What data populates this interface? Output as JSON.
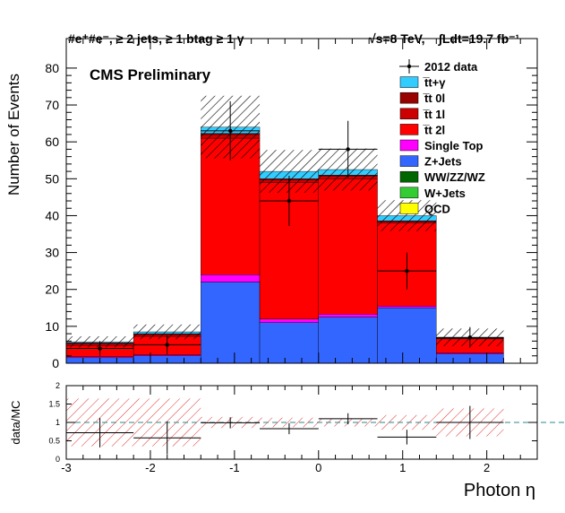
{
  "header": {
    "selection": "#e⁺#e⁻, ≥ 2 jets, ≥ 1 btag ≥ 1 γ",
    "energy": "√s=8 TeV,",
    "lumi": "∫Ldt=19.7 fb⁻¹"
  },
  "label": "CMS Preliminary",
  "chart_data": [
    {
      "type": "bar",
      "stacked": true,
      "xlabel": "Photon η",
      "ylabel": "Number of Events",
      "xlim": [
        -3,
        2.6
      ],
      "ylim": [
        0,
        88
      ],
      "x_ticks": [
        -3,
        -2,
        -1,
        0,
        1,
        2
      ],
      "y_ticks": [
        0,
        10,
        20,
        30,
        40,
        50,
        60,
        70,
        80
      ],
      "bin_edges": [
        -3,
        -2.2,
        -1.4,
        -0.7,
        0,
        0.7,
        1.4,
        2.2
      ],
      "legend_position": "top-right",
      "series": [
        {
          "name": "QCD",
          "color": "#ffff00",
          "values": [
            0,
            0,
            0,
            0,
            0,
            0,
            0
          ]
        },
        {
          "name": "W+Jets",
          "color": "#33cc33",
          "values": [
            0,
            0,
            0,
            0,
            0,
            0,
            0
          ]
        },
        {
          "name": "WW/ZZ/WZ",
          "color": "#006600",
          "values": [
            0,
            0,
            0,
            0,
            0,
            0,
            0
          ]
        },
        {
          "name": "Z+Jets",
          "color": "#3366ff",
          "values": [
            1.5,
            2.0,
            22,
            11,
            12.5,
            15,
            2.5
          ]
        },
        {
          "name": "Single Top",
          "color": "#ff00ff",
          "values": [
            0.3,
            0.3,
            2.0,
            1.0,
            0.8,
            0.5,
            0.3
          ]
        },
        {
          "name": "t̅t 2l",
          "color": "#ff0000",
          "values": [
            3.0,
            5.0,
            37,
            37,
            36.7,
            22.5,
            3.8
          ]
        },
        {
          "name": "t̅t 1l",
          "color": "#cc0000",
          "values": [
            0.5,
            0.5,
            1.0,
            0.8,
            0.8,
            0.5,
            0.2
          ]
        },
        {
          "name": "t̅t 0l",
          "color": "#990000",
          "values": [
            0.2,
            0.2,
            0.3,
            0.2,
            0.2,
            0.1,
            0.1
          ]
        },
        {
          "name": "t̅t+γ",
          "color": "#33ccff",
          "values": [
            0.3,
            0.5,
            1.7,
            2.0,
            1.5,
            1.4,
            0.1
          ]
        }
      ],
      "mc_uncertainty": [
        1.5,
        2.0,
        8.5,
        5.8,
        5.7,
        4.2,
        2.4
      ],
      "data_series": {
        "name": "2012 data",
        "x": [
          -2.6,
          -1.8,
          -1.05,
          -0.35,
          0.35,
          1.05,
          1.8
        ],
        "y": [
          4,
          5,
          63,
          44,
          58,
          25,
          7
        ],
        "x_err": [
          0.4,
          0.4,
          0.35,
          0.35,
          0.35,
          0.35,
          0.4
        ],
        "y_err": [
          2,
          2.5,
          8,
          6.8,
          7.7,
          5,
          2.8
        ]
      }
    },
    {
      "type": "scatter",
      "xlabel": "Photon η",
      "ylabel": "data/MC",
      "xlim": [
        -3,
        2.6
      ],
      "ylim": [
        0,
        2
      ],
      "x_ticks": [
        -3,
        -2,
        -1,
        0,
        1,
        2
      ],
      "y_ticks": [
        0,
        0.5,
        1,
        1.5,
        2
      ],
      "reference_line": 1,
      "ratio": {
        "x": [
          -2.6,
          -1.8,
          -1.05,
          -0.35,
          0.35,
          1.05,
          1.8
        ],
        "y": [
          0.72,
          0.58,
          0.99,
          0.83,
          1.1,
          0.6,
          1.0
        ],
        "x_err": [
          0.4,
          0.4,
          0.35,
          0.35,
          0.35,
          0.35,
          0.4
        ],
        "y_err": [
          0.4,
          0.45,
          0.15,
          0.15,
          0.15,
          0.2,
          0.45
        ],
        "band": [
          0.65,
          0.65,
          0.15,
          0.13,
          0.11,
          0.2,
          0.38
        ]
      }
    }
  ]
}
